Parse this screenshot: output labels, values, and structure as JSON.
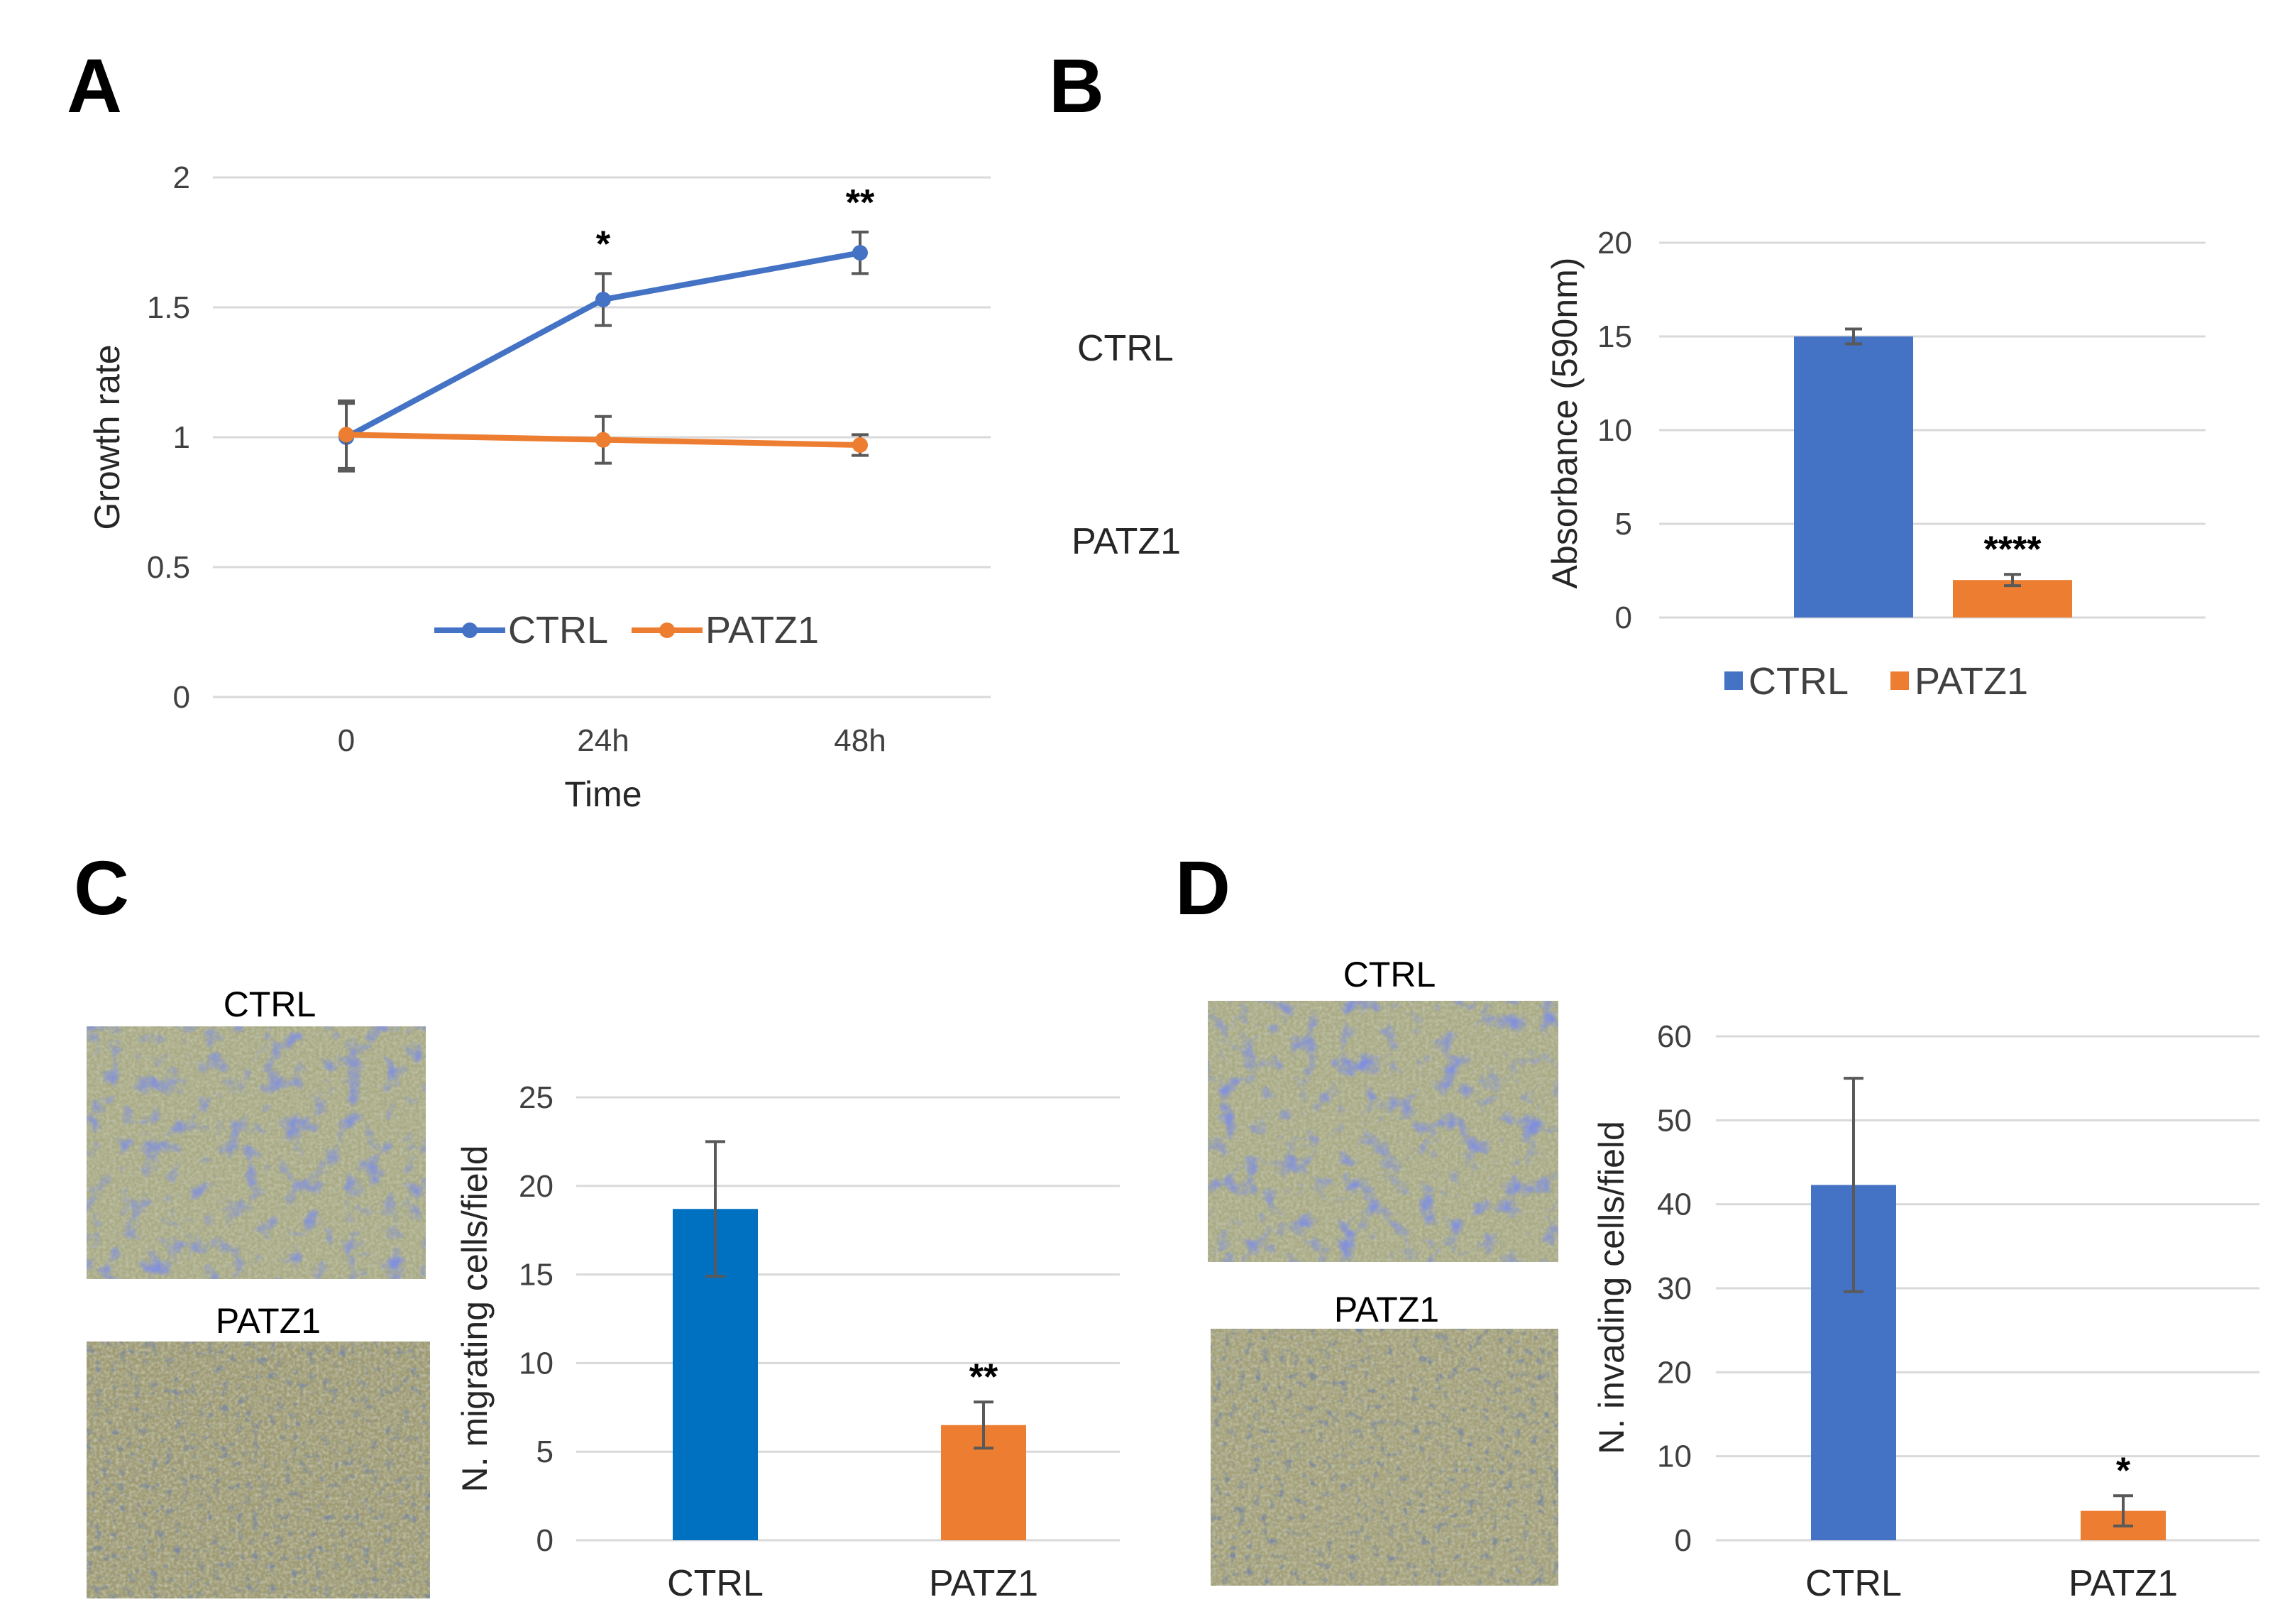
{
  "panels": {
    "A": "A",
    "B": "B",
    "C": "C",
    "D": "D"
  },
  "colors": {
    "ctrl": "#4472c4",
    "patz1": "#ed7d31",
    "ctrl_c": "#0070c0"
  },
  "chart_data": [
    {
      "id": "A",
      "type": "line",
      "xlabel": "Time",
      "ylabel": "Growth rate",
      "categories": [
        "0",
        "24h",
        "48h"
      ],
      "ylim": [
        0,
        2
      ],
      "yticks": [
        "0",
        "0.5",
        "1",
        "1.5",
        "2"
      ],
      "series": [
        {
          "name": "CTRL",
          "values": [
            1.0,
            1.53,
            1.71
          ],
          "errors": [
            0.13,
            0.1,
            0.08
          ]
        },
        {
          "name": "PATZ1",
          "values": [
            1.01,
            0.99,
            0.97
          ],
          "errors": [
            0.13,
            0.09,
            0.04
          ]
        }
      ],
      "annotations": [
        "",
        "*",
        "**"
      ],
      "legend": "bottom-center",
      "grid": true
    },
    {
      "id": "B",
      "type": "bar",
      "ylabel": "Absorbance (590nm)",
      "categories": [
        "CTRL",
        "PATZ1"
      ],
      "values": [
        15.0,
        2.0
      ],
      "errors": [
        0.4,
        0.3
      ],
      "ylim": [
        0,
        20
      ],
      "yticks": [
        "0",
        "5",
        "10",
        "15",
        "20"
      ],
      "annotations": [
        "",
        "****"
      ],
      "row_labels": [
        "CTRL",
        "PATZ1"
      ],
      "legend": "bottom",
      "grid": true
    },
    {
      "id": "C",
      "type": "bar",
      "ylabel": "N. migrating cells/field",
      "categories": [
        "CTRL",
        "PATZ1"
      ],
      "values": [
        18.7,
        6.5
      ],
      "errors": [
        3.8,
        1.3
      ],
      "ylim": [
        0,
        25
      ],
      "yticks": [
        "0",
        "5",
        "10",
        "15",
        "20",
        "25"
      ],
      "annotations": [
        "",
        "**"
      ],
      "image_labels": [
        "CTRL",
        "PATZ1"
      ],
      "grid": true
    },
    {
      "id": "D",
      "type": "bar",
      "ylabel": "N. invading cells/field",
      "categories": [
        "CTRL",
        "PATZ1"
      ],
      "values": [
        42.3,
        3.5
      ],
      "errors": [
        12.7,
        1.8
      ],
      "ylim": [
        0,
        60
      ],
      "yticks": [
        "0",
        "10",
        "20",
        "30",
        "40",
        "50",
        "60"
      ],
      "annotations": [
        "",
        "*"
      ],
      "image_labels": [
        "CTRL",
        "PATZ1"
      ],
      "grid": true
    }
  ]
}
